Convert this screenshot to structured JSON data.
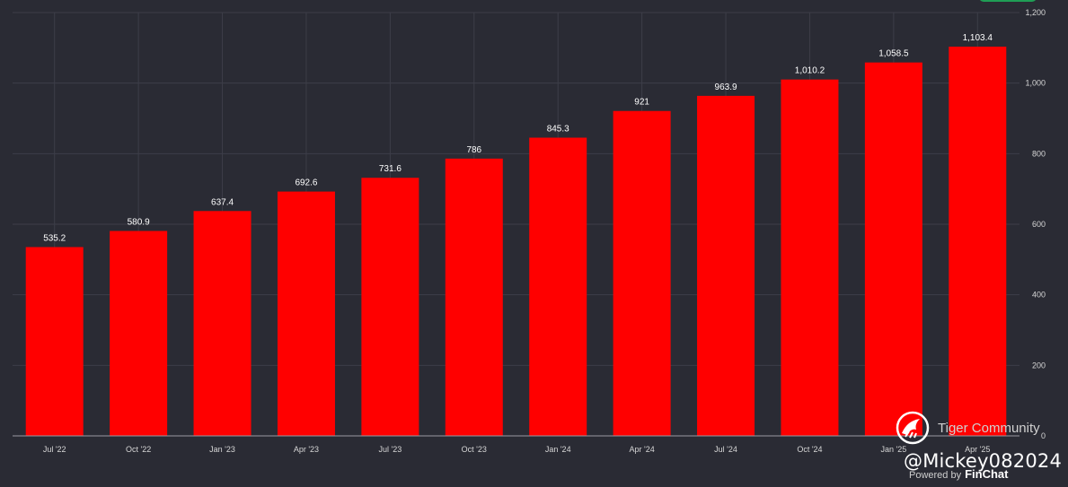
{
  "chart_data": {
    "type": "bar",
    "categories": [
      "Jul '22",
      "Oct '22",
      "Jan '23",
      "Apr '23",
      "Jul '23",
      "Oct '23",
      "Jan '24",
      "Apr '24",
      "Jul '24",
      "Oct '24",
      "Jan '25",
      "Apr '25"
    ],
    "values": [
      535.2,
      580.9,
      637.4,
      692.6,
      731.6,
      786,
      845.3,
      921,
      963.9,
      1010.2,
      1058.5,
      1103.4
    ],
    "value_labels": [
      "535.2",
      "580.9",
      "637.4",
      "692.6",
      "731.6",
      "786",
      "845.3",
      "921",
      "963.9",
      "1,010.2",
      "1,058.5",
      "1,103.4"
    ],
    "y_ticks": [
      0,
      200,
      400,
      600,
      800,
      1000,
      1200
    ],
    "y_tick_labels": [
      "0",
      "200",
      "400",
      "600",
      "800",
      "1,000",
      "1,200"
    ],
    "ylim": [
      0,
      1200
    ],
    "title": "",
    "xlabel": "",
    "ylabel": "",
    "grid": true,
    "bar_color": "#ff0000",
    "background": "#2a2b34",
    "grid_color": "#3d3e48"
  },
  "watermark": {
    "community": "Tiger Community",
    "handle": "@Mickey082024",
    "powered_by": "Powered by",
    "brand": "FinChat"
  }
}
